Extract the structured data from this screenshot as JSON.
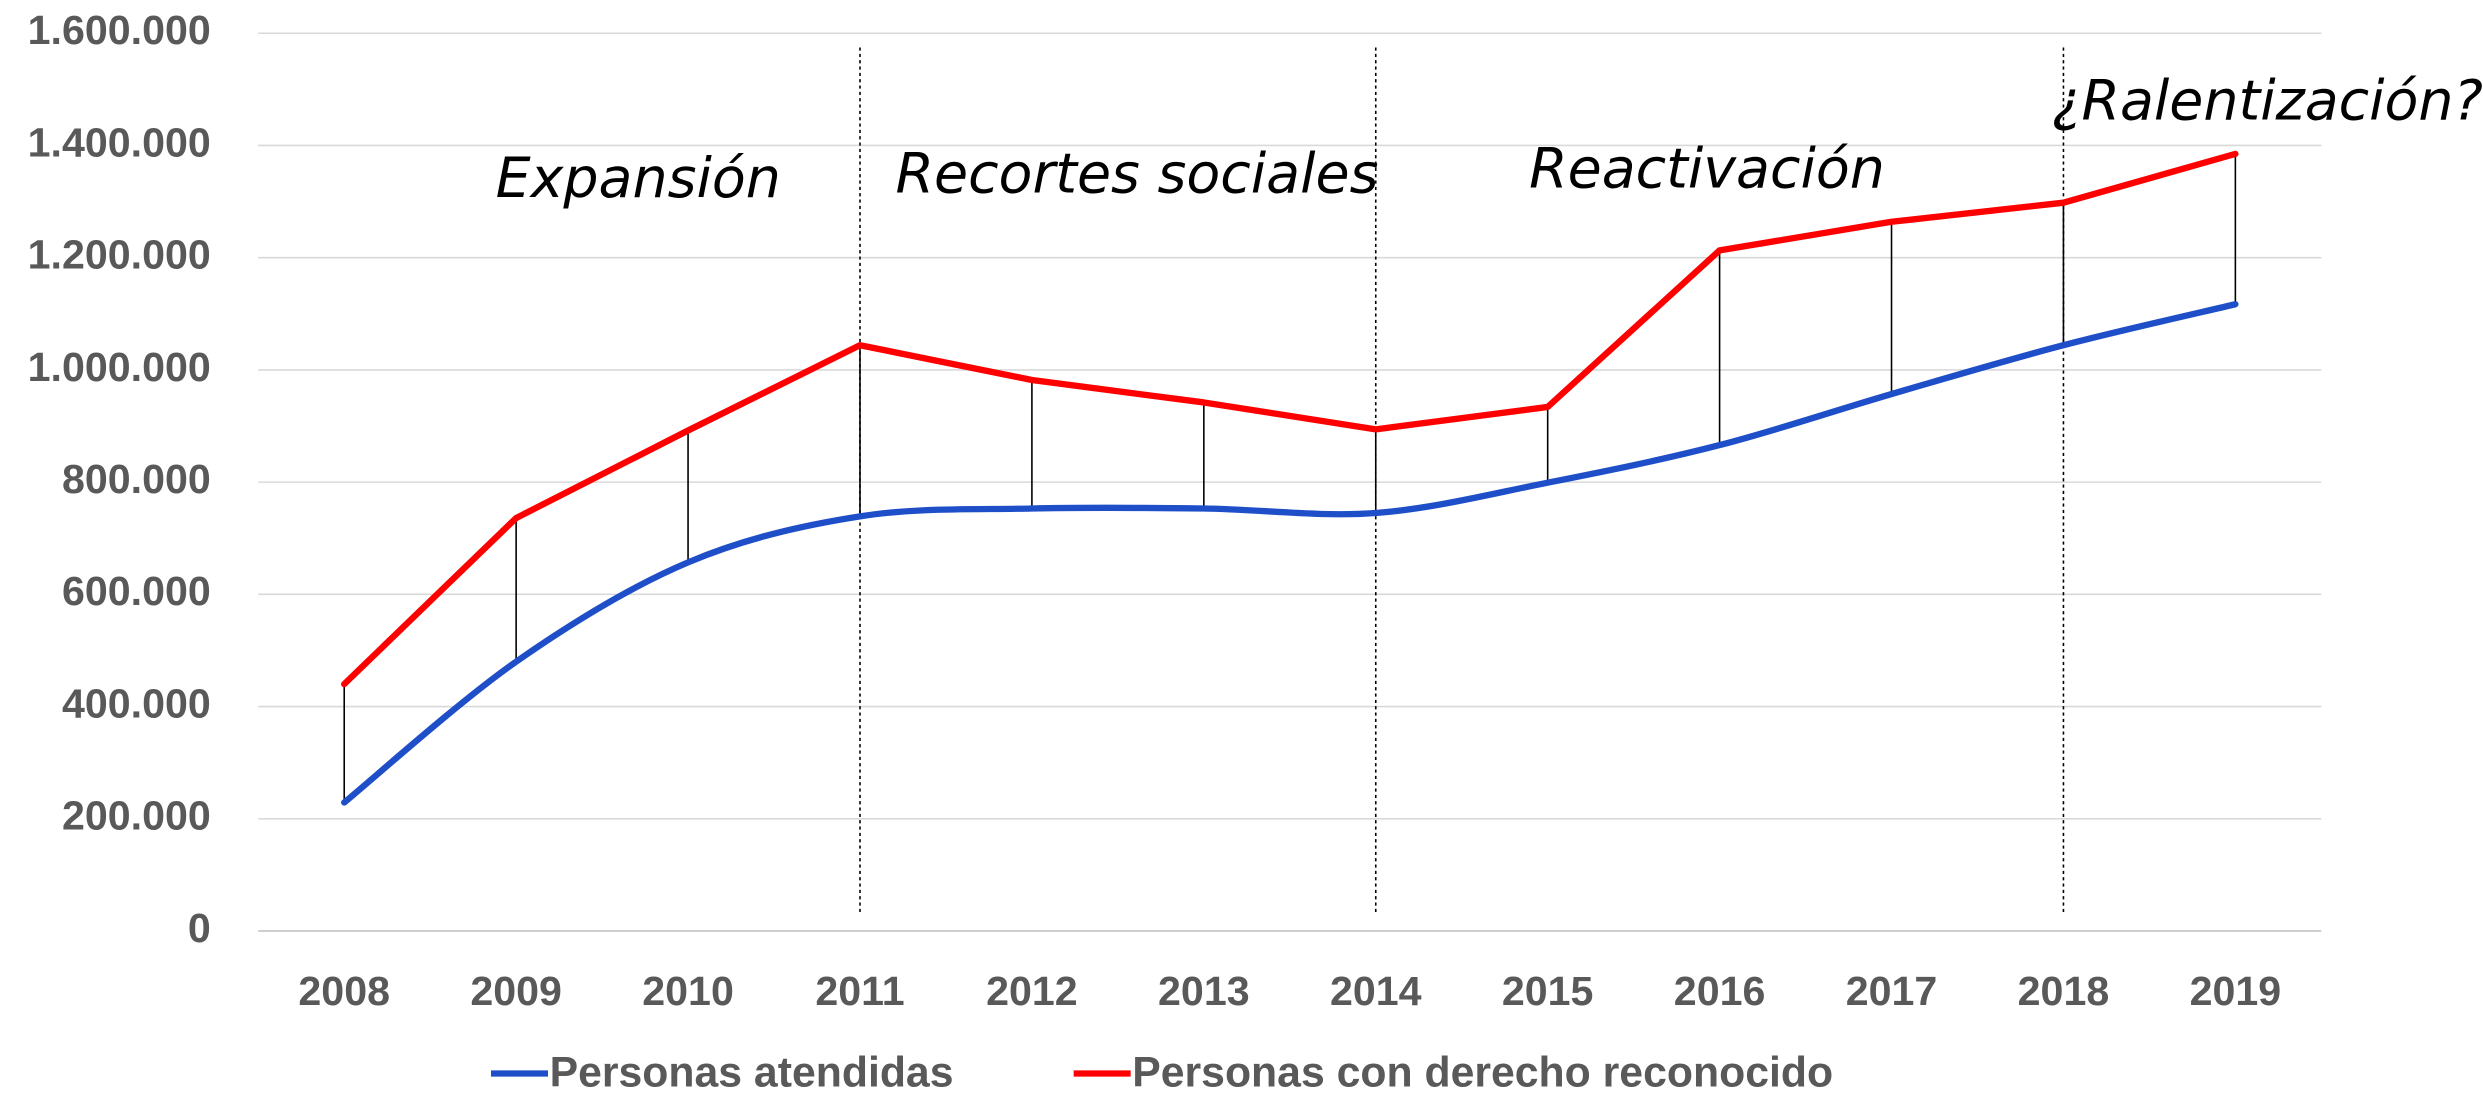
{
  "chart_data": {
    "type": "line",
    "categories": [
      "2008",
      "2009",
      "2010",
      "2011",
      "2012",
      "2013",
      "2014",
      "2015",
      "2016",
      "2017",
      "2018",
      "2019"
    ],
    "series": [
      {
        "name": "Personas atendidas",
        "color": "#1f4fc8",
        "smooth": true,
        "values": [
          229000,
          480000,
          657000,
          739000,
          753000,
          753000,
          745000,
          799000,
          866000,
          957000,
          1044000,
          1117000
        ]
      },
      {
        "name": "Personas con derecho reconocido",
        "color": "#ff0000",
        "smooth": false,
        "values": [
          440000,
          736000,
          892000,
          1044000,
          982000,
          942000,
          894000,
          934000,
          1213000,
          1264000,
          1298000,
          1385000
        ]
      }
    ],
    "ylim": [
      0,
      1600000
    ],
    "yticks": [
      0,
      {
        "value": 200000,
        "label": "200.000"
      },
      {
        "value": 400000,
        "label": "400.000"
      },
      {
        "value": 600000,
        "label": "600.000"
      },
      {
        "value": 800000,
        "label": "800.000"
      },
      {
        "value": 1000000,
        "label": "1.000.000"
      },
      {
        "value": 1200000,
        "label": "1.200.000"
      },
      {
        "value": 1400000,
        "label": "1.400.000"
      },
      {
        "value": 1600000,
        "label": "1.600.000"
      }
    ],
    "grid": true,
    "legend": "bottom",
    "annotations": [
      "Expansión",
      "Recortes sociales",
      "Reactivación",
      "¿Ralentización?"
    ]
  }
}
